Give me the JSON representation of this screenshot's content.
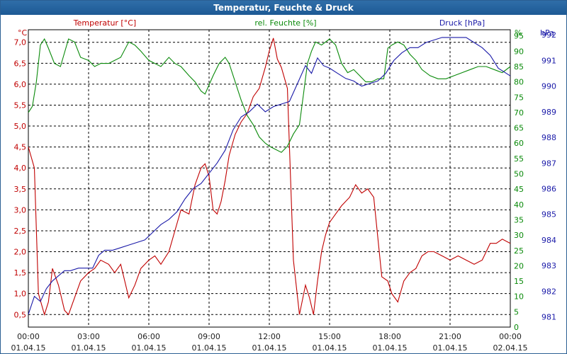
{
  "window": {
    "title": "Temperatur, Feuchte & Druck"
  },
  "colors": {
    "temp": "#c00000",
    "hum": "#0a8a0a",
    "pres": "#1a1aa8",
    "title_bg": "#1d5a95",
    "grid": "#000000"
  },
  "chart_data": {
    "type": "line",
    "title": "Temperatur, Feuchte & Druck",
    "x_unit": "hours since 01.04.15 00:00",
    "xlim": [
      0,
      24
    ],
    "x_ticks": [
      {
        "time": "00:00",
        "date": "01.04.15"
      },
      {
        "time": "03:00",
        "date": "01.04.15"
      },
      {
        "time": "06:00",
        "date": "01.04.15"
      },
      {
        "time": "09:00",
        "date": "01.04.15"
      },
      {
        "time": "12:00",
        "date": "01.04.15"
      },
      {
        "time": "15:00",
        "date": "01.04.15"
      },
      {
        "time": "18:00",
        "date": "01.04.15"
      },
      {
        "time": "21:00",
        "date": "01.04.15"
      },
      {
        "time": "00:00",
        "date": "02.04.15"
      }
    ],
    "axes": {
      "temp": {
        "unit": "°C",
        "ylim": [
          0.2,
          7.3
        ],
        "ticks": [
          "0,5",
          "1,0",
          "1,5",
          "2,0",
          "2,5",
          "3,0",
          "3,5",
          "4,0",
          "4,5",
          "5,0",
          "5,5",
          "6,0",
          "6,5",
          "7,0"
        ]
      },
      "hum": {
        "unit": "%",
        "ylim": [
          0,
          97
        ],
        "ticks": [
          "0",
          "5",
          "10",
          "15",
          "20",
          "25",
          "30",
          "35",
          "40",
          "45",
          "50",
          "55",
          "60",
          "65",
          "70",
          "75",
          "80",
          "85",
          "90",
          "95"
        ]
      },
      "pres": {
        "unit": "hPa",
        "ylim": [
          980.6,
          992.2
        ],
        "ticks": [
          "981",
          "982",
          "983",
          "984",
          "985",
          "986",
          "987",
          "988",
          "989",
          "990",
          "991",
          "992"
        ]
      }
    },
    "series": [
      {
        "name": "Temperatur [°C]",
        "axis": "temp",
        "x": [
          0,
          0.3,
          0.5,
          0.8,
          1.0,
          1.2,
          1.5,
          1.8,
          2.0,
          2.3,
          2.6,
          3.0,
          3.3,
          3.6,
          4.0,
          4.3,
          4.6,
          5.0,
          5.3,
          5.6,
          6.0,
          6.3,
          6.6,
          7.0,
          7.3,
          7.6,
          8.0,
          8.3,
          8.6,
          8.8,
          9.0,
          9.2,
          9.4,
          9.6,
          9.8,
          10.0,
          10.3,
          10.6,
          10.9,
          11.2,
          11.5,
          11.8,
          12.0,
          12.2,
          12.4,
          12.6,
          12.9,
          13.2,
          13.5,
          13.8,
          14.0,
          14.2,
          14.4,
          14.6,
          14.8,
          15.0,
          15.3,
          15.6,
          16.0,
          16.3,
          16.6,
          16.9,
          17.2,
          17.6,
          17.9,
          18.1,
          18.4,
          18.7,
          19.0,
          19.3,
          19.6,
          19.9,
          20.2,
          20.6,
          21.0,
          21.4,
          21.8,
          22.2,
          22.6,
          23.0,
          23.3,
          23.6,
          24.0
        ],
        "values": [
          4.5,
          4.0,
          1.0,
          0.5,
          0.8,
          1.6,
          1.2,
          0.6,
          0.5,
          0.9,
          1.3,
          1.5,
          1.6,
          1.8,
          1.7,
          1.5,
          1.7,
          0.9,
          1.2,
          1.6,
          1.8,
          1.9,
          1.7,
          2.0,
          2.5,
          3.0,
          2.9,
          3.6,
          4.0,
          4.1,
          3.8,
          3.0,
          2.9,
          3.2,
          3.7,
          4.3,
          4.8,
          5.1,
          5.3,
          5.7,
          5.9,
          6.4,
          6.8,
          7.1,
          6.6,
          6.4,
          5.9,
          1.8,
          0.5,
          1.2,
          0.9,
          0.5,
          1.3,
          2.0,
          2.4,
          2.7,
          2.9,
          3.1,
          3.3,
          3.6,
          3.4,
          3.5,
          3.3,
          1.4,
          1.3,
          1.0,
          0.8,
          1.3,
          1.5,
          1.6,
          1.9,
          2.0,
          2.0,
          1.9,
          1.8,
          1.9,
          1.8,
          1.7,
          1.8,
          2.2,
          2.2,
          2.3,
          2.2
        ]
      },
      {
        "name": "rel. Feuchte [%]",
        "axis": "hum",
        "x": [
          0,
          0.2,
          0.4,
          0.6,
          0.8,
          1.0,
          1.3,
          1.6,
          2.0,
          2.3,
          2.6,
          3.0,
          3.3,
          3.6,
          4.0,
          4.3,
          4.6,
          5.0,
          5.3,
          5.6,
          6.0,
          6.3,
          6.6,
          7.0,
          7.3,
          7.6,
          8.0,
          8.3,
          8.6,
          8.8,
          9.0,
          9.2,
          9.5,
          9.8,
          10.0,
          10.3,
          10.6,
          10.9,
          11.2,
          11.5,
          11.8,
          12.0,
          12.3,
          12.6,
          12.9,
          13.2,
          13.5,
          13.7,
          13.9,
          14.1,
          14.3,
          14.6,
          15.0,
          15.3,
          15.6,
          15.9,
          16.2,
          16.5,
          16.8,
          17.1,
          17.4,
          17.7,
          17.9,
          18.1,
          18.4,
          18.7,
          19.0,
          19.3,
          19.6,
          20.0,
          20.4,
          20.8,
          21.2,
          21.6,
          22.0,
          22.4,
          22.8,
          23.2,
          23.6,
          24.0
        ],
        "values": [
          70,
          72,
          80,
          92,
          94,
          91,
          86,
          85,
          94,
          93,
          88,
          87,
          85,
          86,
          86,
          87,
          88,
          93,
          92,
          90,
          87,
          86,
          85,
          88,
          86,
          85,
          82,
          80,
          77,
          76,
          79,
          82,
          86,
          88,
          86,
          80,
          74,
          69,
          66,
          62,
          60,
          59,
          58,
          57,
          59,
          63,
          66,
          76,
          86,
          90,
          93,
          92,
          94,
          92,
          86,
          83,
          84,
          82,
          80,
          80,
          81,
          81,
          91,
          92,
          93,
          92,
          89,
          87,
          84,
          82,
          81,
          81,
          82,
          83,
          84,
          85,
          85,
          84,
          83,
          85
        ]
      },
      {
        "name": "Druck [hPa]",
        "axis": "pres",
        "x": [
          0,
          0.3,
          0.6,
          0.9,
          1.2,
          1.5,
          1.8,
          2.1,
          2.5,
          2.8,
          3.2,
          3.5,
          3.8,
          4.2,
          4.6,
          5.0,
          5.4,
          5.8,
          6.2,
          6.6,
          7.0,
          7.4,
          7.8,
          8.2,
          8.6,
          9.0,
          9.4,
          9.8,
          10.2,
          10.6,
          11.0,
          11.4,
          11.8,
          12.2,
          12.6,
          13.0,
          13.4,
          13.8,
          14.1,
          14.4,
          14.7,
          15.0,
          15.4,
          15.8,
          16.2,
          16.6,
          17.0,
          17.4,
          17.8,
          18.2,
          18.6,
          19.0,
          19.4,
          19.8,
          20.2,
          20.6,
          21.0,
          21.4,
          21.8,
          22.2,
          22.6,
          23.0,
          23.4,
          23.8,
          24.0
        ],
        "values": [
          981.1,
          981.8,
          981.6,
          982.1,
          982.4,
          982.6,
          982.8,
          982.8,
          982.9,
          982.9,
          982.9,
          983.4,
          983.6,
          983.6,
          983.7,
          983.8,
          983.9,
          984.0,
          984.3,
          984.6,
          984.8,
          985.1,
          985.6,
          986.0,
          986.2,
          986.6,
          987.0,
          987.5,
          988.3,
          988.8,
          989.0,
          989.3,
          989.0,
          989.2,
          989.3,
          989.4,
          990.1,
          990.8,
          990.5,
          991.1,
          990.8,
          990.7,
          990.5,
          990.3,
          990.2,
          990.0,
          990.1,
          990.2,
          990.5,
          991.0,
          991.3,
          991.5,
          991.5,
          991.7,
          991.8,
          991.9,
          991.9,
          991.9,
          991.9,
          991.7,
          991.5,
          991.2,
          990.7,
          990.5,
          990.4
        ]
      }
    ],
    "legend": {
      "temp": "Temperatur [°C]",
      "hum": "rel. Feuchte [%]",
      "pres": "Druck [hPa]"
    },
    "grid": true
  }
}
